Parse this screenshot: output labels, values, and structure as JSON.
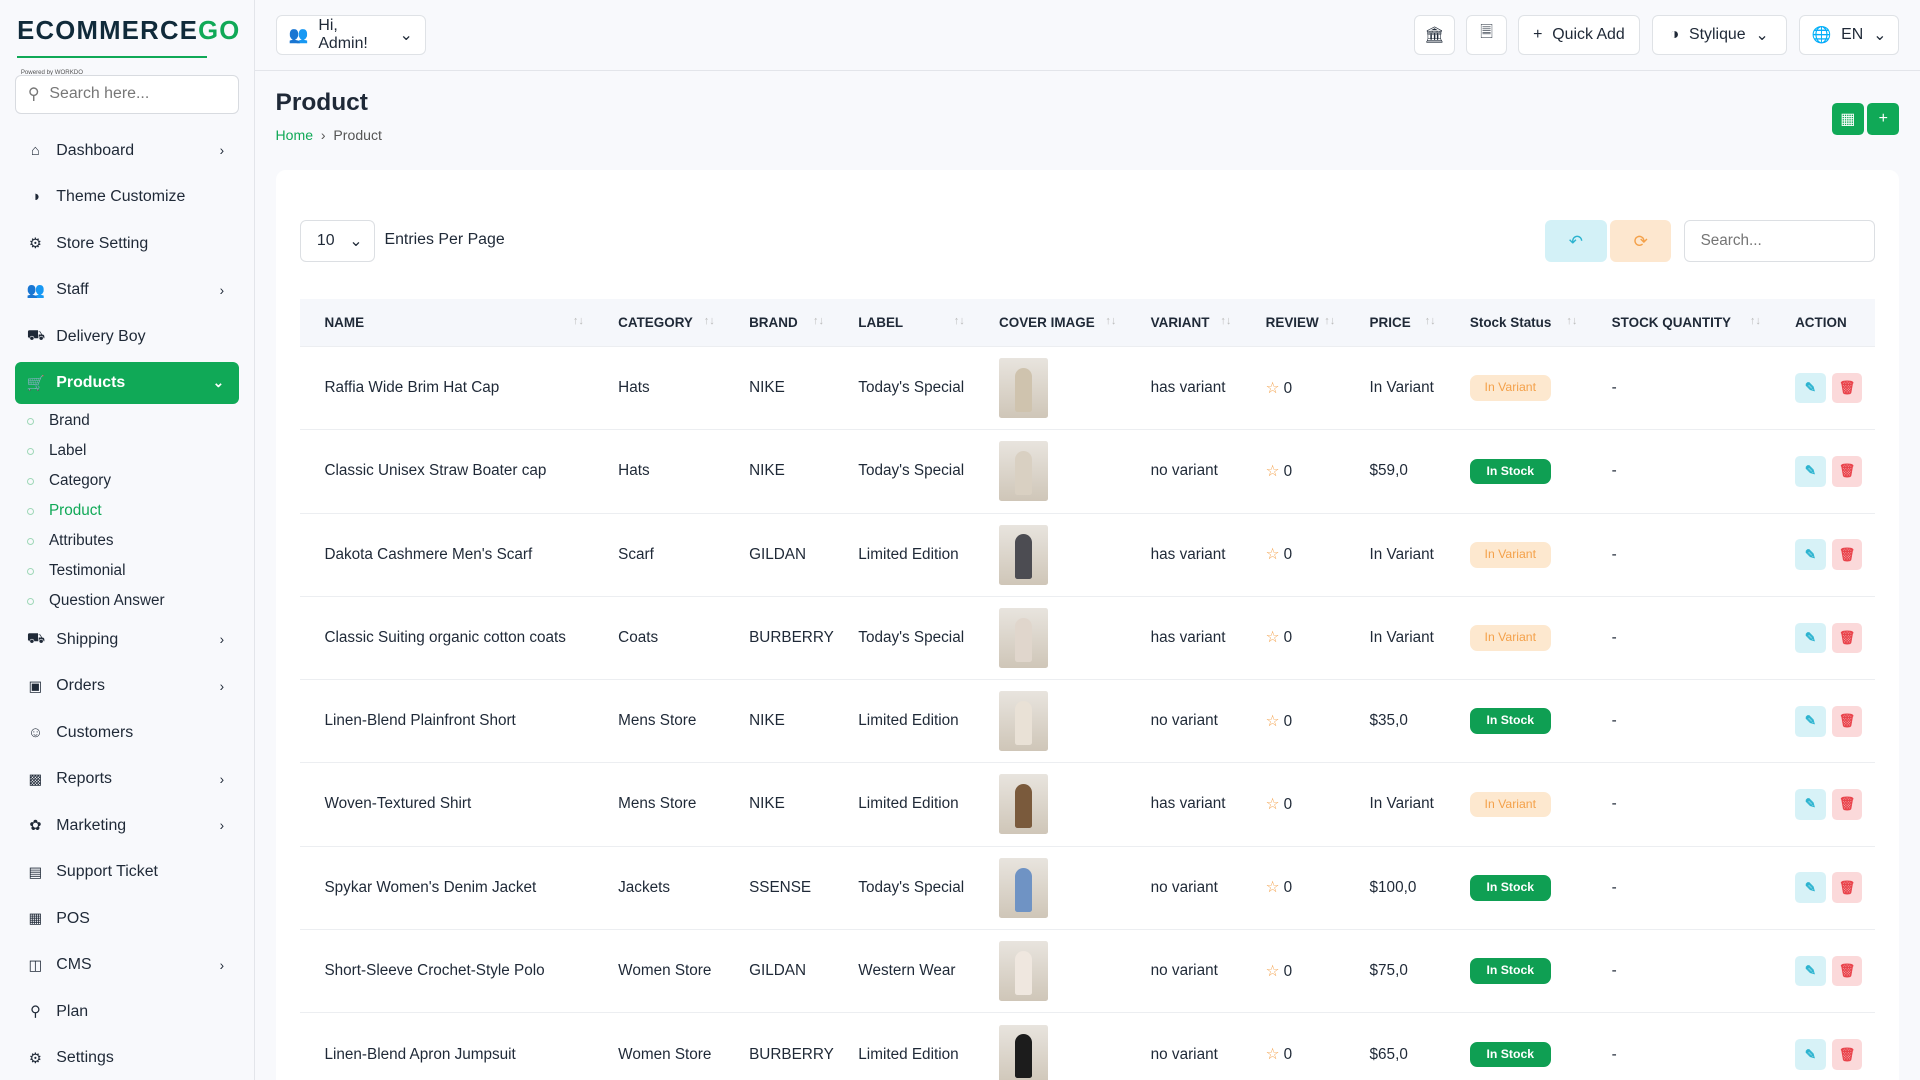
{
  "brand": {
    "name": "ECOMMERCEGO",
    "tagline": "Powered by WORKDO"
  },
  "sidebar": {
    "search_placeholder": "Search here...",
    "items": [
      {
        "label": "Dashboard",
        "icon": "home",
        "chev": true
      },
      {
        "label": "Theme Customize",
        "icon": "palette",
        "chev": false
      },
      {
        "label": "Store Setting",
        "icon": "gear",
        "chev": false
      },
      {
        "label": "Staff",
        "icon": "users",
        "chev": true
      },
      {
        "label": "Delivery Boy",
        "icon": "truck",
        "chev": false
      },
      {
        "label": "Products",
        "icon": "cart",
        "chev": true,
        "active": true
      }
    ],
    "subitems": [
      "Brand",
      "Label",
      "Category",
      "Product",
      "Attributes",
      "Testimonial",
      "Question Answer"
    ],
    "current_sub": "Product",
    "items2": [
      {
        "label": "Shipping",
        "icon": "truck",
        "chev": true
      },
      {
        "label": "Orders",
        "icon": "box",
        "chev": true
      },
      {
        "label": "Customers",
        "icon": "user",
        "chev": false
      },
      {
        "label": "Reports",
        "icon": "chart",
        "chev": true
      },
      {
        "label": "Marketing",
        "icon": "megaphone",
        "chev": true
      },
      {
        "label": "Support Ticket",
        "icon": "ticket",
        "chev": false
      },
      {
        "label": "POS",
        "icon": "pos",
        "chev": false
      },
      {
        "label": "CMS",
        "icon": "layout",
        "chev": true
      },
      {
        "label": "Plan",
        "icon": "trophy",
        "chev": false
      },
      {
        "label": "Settings",
        "icon": "gear",
        "chev": false
      }
    ]
  },
  "topbar": {
    "greeting": "Hi, Admin!",
    "quick_add": "Quick Add",
    "theme": "Stylique",
    "lang": "EN"
  },
  "page": {
    "title": "Product",
    "breadcrumb": [
      "Home",
      "Product"
    ]
  },
  "table_controls": {
    "entries": "10",
    "entries_label": "Entries Per Page",
    "search_placeholder": "Search..."
  },
  "columns": [
    "NAME",
    "CATEGORY",
    "BRAND",
    "LABEL",
    "COVER IMAGE",
    "VARIANT",
    "REVIEW",
    "PRICE",
    "Stock Status",
    "STOCK QUANTITY",
    "ACTION"
  ],
  "rows": [
    [
      "Raffia Wide Brim Hat Cap",
      "Hats",
      "NIKE",
      "Today's Special",
      "has variant",
      "0",
      "In Variant",
      "In Variant",
      "-"
    ],
    [
      "Classic Unisex Straw Boater cap",
      "Hats",
      "NIKE",
      "Today's Special",
      "no variant",
      "0",
      "$59,0",
      "In Stock",
      "-"
    ],
    [
      "Dakota Cashmere Men's Scarf",
      "Scarf",
      "GILDAN",
      "Limited Edition",
      "has variant",
      "0",
      "In Variant",
      "In Variant",
      "-"
    ],
    [
      "Classic Suiting organic cotton coats",
      "Coats",
      "BURBERRY",
      "Today's Special",
      "has variant",
      "0",
      "In Variant",
      "In Variant",
      "-"
    ],
    [
      "Linen-Blend Plainfront Short",
      "Mens Store",
      "NIKE",
      "Limited Edition",
      "no variant",
      "0",
      "$35,0",
      "In Stock",
      "-"
    ],
    [
      "Woven-Textured Shirt",
      "Mens Store",
      "NIKE",
      "Limited Edition",
      "has variant",
      "0",
      "In Variant",
      "In Variant",
      "-"
    ],
    [
      "Spykar Women's Denim Jacket",
      "Jackets",
      "SSENSE",
      "Today's Special",
      "no variant",
      "0",
      "$100,0",
      "In Stock",
      "-"
    ],
    [
      "Short-Sleeve Crochet-Style Polo",
      "Women Store",
      "GILDAN",
      "Western Wear",
      "no variant",
      "0",
      "$75,0",
      "In Stock",
      "-"
    ],
    [
      "Linen-Blend Apron Jumpsuit",
      "Women Store",
      "BURBERRY",
      "Limited Edition",
      "no variant",
      "0",
      "$65,0",
      "In Stock",
      "-"
    ]
  ],
  "colors": {
    "accent": "#10a957",
    "in_variant": "#f4a14a",
    "in_stock": "#0f9f53",
    "edit": "#2bb3cf",
    "delete": "#e9434b"
  }
}
